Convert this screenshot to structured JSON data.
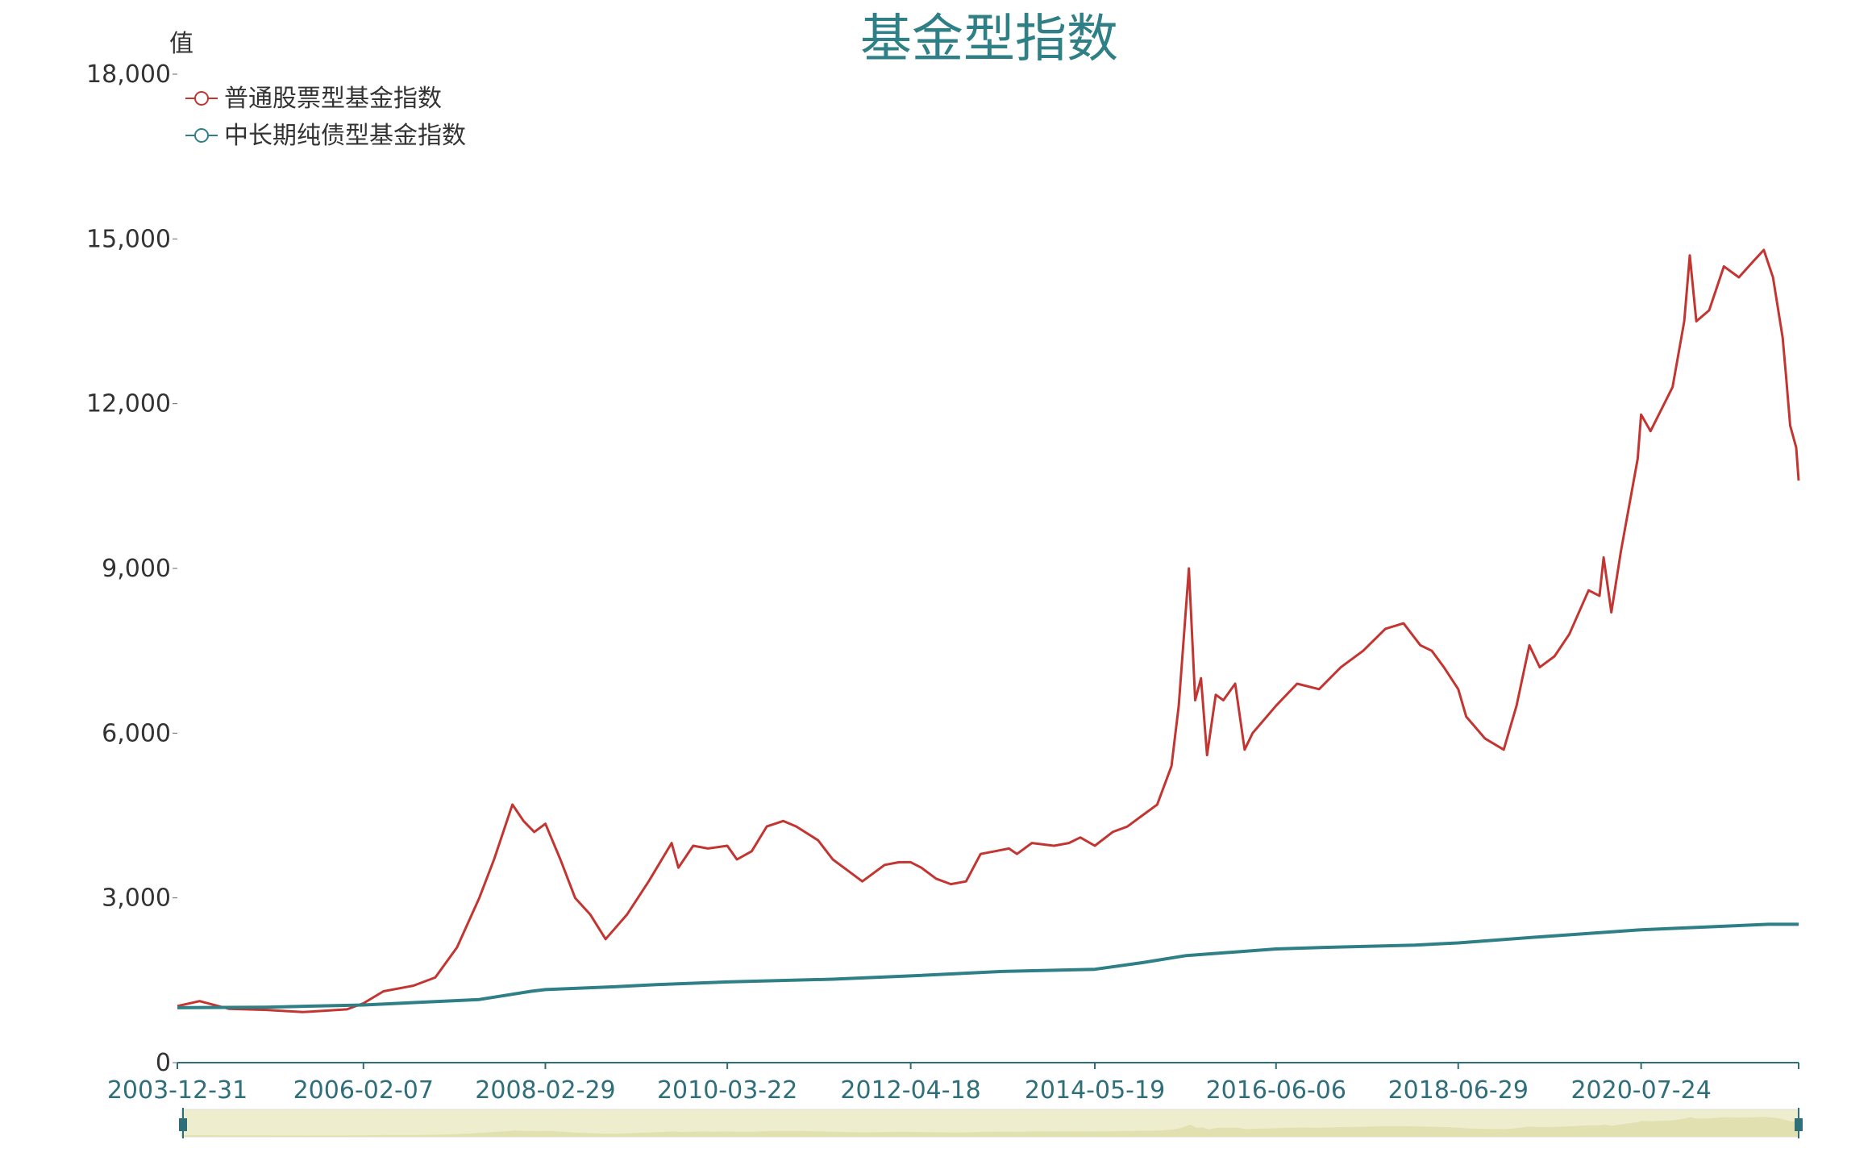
{
  "chart_data": {
    "type": "line",
    "title": "基金型指数",
    "ylabel": "值",
    "ylim": [
      0,
      18000
    ],
    "yticks": [
      0,
      3000,
      6000,
      9000,
      12000,
      15000,
      18000
    ],
    "ytick_labels": [
      "0",
      "3,000",
      "6,000",
      "9,000",
      "12,000",
      "15,000",
      "18,000"
    ],
    "x_start": "2003-12-31",
    "x_end": "2022-05-06",
    "x_ticks": [
      "2003-12-31",
      "2006-02-07",
      "2008-02-29",
      "2010-03-22",
      "2012-04-18",
      "2014-05-19",
      "2016-06-06",
      "2018-06-29",
      "2020-07-24"
    ],
    "legend_position": "top-left",
    "data_zoom": true,
    "series": [
      {
        "name": "普通股票型基金指数",
        "color": "#c23531",
        "x": [
          "2003-12-31",
          "2004-04-01",
          "2004-08-01",
          "2005-01-01",
          "2005-06-01",
          "2005-12-01",
          "2006-02-07",
          "2006-05-01",
          "2006-09-01",
          "2006-12-01",
          "2007-03-01",
          "2007-06-01",
          "2007-08-01",
          "2007-10-16",
          "2007-12-01",
          "2008-01-14",
          "2008-02-29",
          "2008-05-01",
          "2008-07-01",
          "2008-09-01",
          "2008-11-04",
          "2009-02-01",
          "2009-05-01",
          "2009-08-04",
          "2009-09-01",
          "2009-11-01",
          "2010-01-01",
          "2010-03-22",
          "2010-05-01",
          "2010-07-01",
          "2010-09-01",
          "2010-11-08",
          "2011-01-01",
          "2011-04-01",
          "2011-06-01",
          "2011-08-01",
          "2011-10-01",
          "2012-01-01",
          "2012-03-01",
          "2012-04-18",
          "2012-06-01",
          "2012-08-01",
          "2012-10-01",
          "2012-12-03",
          "2013-02-01",
          "2013-04-01",
          "2013-05-29",
          "2013-07-01",
          "2013-09-01",
          "2013-12-01",
          "2014-02-01",
          "2014-03-20",
          "2014-05-19",
          "2014-08-01",
          "2014-10-01",
          "2014-12-01",
          "2015-02-01",
          "2015-04-01",
          "2015-05-01",
          "2015-06-12",
          "2015-07-08",
          "2015-08-01",
          "2015-08-26",
          "2015-10-01",
          "2015-11-01",
          "2015-12-20",
          "2016-01-28",
          "2016-03-01",
          "2016-06-06",
          "2016-09-01",
          "2016-12-01",
          "2017-03-01",
          "2017-06-01",
          "2017-09-01",
          "2017-11-15",
          "2018-01-24",
          "2018-03-12",
          "2018-05-01",
          "2018-06-29",
          "2018-08-01",
          "2018-10-18",
          "2019-01-03",
          "2019-02-25",
          "2019-04-19",
          "2019-06-01",
          "2019-08-01",
          "2019-10-01",
          "2019-12-20",
          "2020-02-03",
          "2020-02-20",
          "2020-03-23",
          "2020-05-01",
          "2020-07-10",
          "2020-07-24",
          "2020-09-01",
          "2020-12-01",
          "2021-01-18",
          "2021-02-10",
          "2021-03-09",
          "2021-05-01",
          "2021-07-01",
          "2021-09-01",
          "2021-11-01",
          "2021-12-13",
          "2022-01-20",
          "2022-03-01",
          "2022-03-15",
          "2022-04-01",
          "2022-04-26",
          "2022-05-06"
        ],
        "values": [
          1030,
          1120,
          980,
          960,
          920,
          970,
          1080,
          1300,
          1400,
          1550,
          2100,
          3000,
          3700,
          4700,
          4400,
          4200,
          4350,
          3700,
          3000,
          2700,
          2250,
          2700,
          3300,
          4000,
          3550,
          3950,
          3900,
          3950,
          3700,
          3850,
          4300,
          4400,
          4300,
          4050,
          3700,
          3500,
          3300,
          3600,
          3650,
          3650,
          3550,
          3350,
          3250,
          3300,
          3800,
          3850,
          3900,
          3800,
          4000,
          3950,
          4000,
          4100,
          3950,
          4200,
          4300,
          4500,
          4700,
          5400,
          6500,
          9000,
          6600,
          7000,
          5600,
          6700,
          6600,
          6900,
          5700,
          6000,
          6500,
          6900,
          6800,
          7200,
          7500,
          7900,
          8000,
          7600,
          7500,
          7200,
          6800,
          6300,
          5900,
          5700,
          6500,
          7600,
          7200,
          7400,
          7800,
          8600,
          8500,
          9200,
          8200,
          9300,
          11000,
          11800,
          11500,
          12300,
          13500,
          14700,
          13500,
          13700,
          14500,
          14300,
          14600,
          14800,
          14300,
          13200,
          12500,
          11600,
          11200,
          10600
        ]
      },
      {
        "name": "中长期纯债型基金指数",
        "color": "#2f7f86",
        "x": [
          "2003-12-31",
          "2005-01-01",
          "2006-02-07",
          "2007-06-01",
          "2008-01-01",
          "2008-02-29",
          "2008-12-01",
          "2009-06-01",
          "2010-03-22",
          "2011-06-01",
          "2012-04-18",
          "2013-05-01",
          "2013-11-01",
          "2014-05-19",
          "2014-12-01",
          "2015-06-01",
          "2016-06-06",
          "2017-01-01",
          "2018-01-01",
          "2018-06-29",
          "2019-06-01",
          "2020-07-24",
          "2021-01-01",
          "2022-01-01",
          "2022-05-06"
        ],
        "values": [
          1000,
          1010,
          1050,
          1150,
          1300,
          1330,
          1380,
          1420,
          1470,
          1520,
          1580,
          1660,
          1680,
          1700,
          1820,
          1950,
          2070,
          2100,
          2140,
          2180,
          2290,
          2420,
          2450,
          2520,
          2520
        ]
      }
    ]
  }
}
